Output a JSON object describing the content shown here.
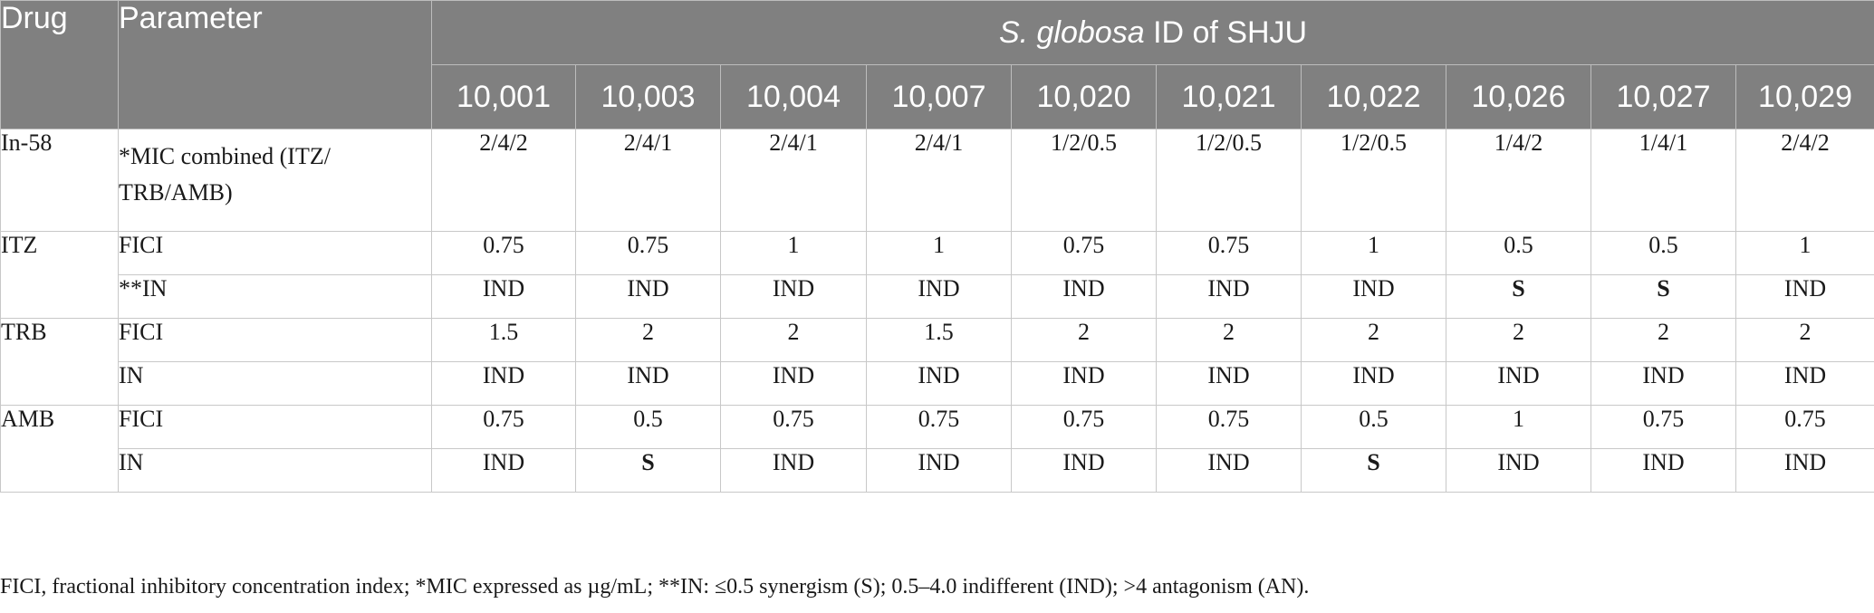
{
  "table": {
    "header": {
      "drug": "Drug",
      "parameter": "Parameter",
      "group_italic": "S. globosa",
      "group_rest": " ID of SHJU",
      "isolates": [
        "10,001",
        "10,003",
        "10,004",
        "10,007",
        "10,020",
        "10,021",
        "10,022",
        "10,026",
        "10,027",
        "10,029"
      ]
    },
    "groups": [
      {
        "drug": "In-58",
        "rows": [
          {
            "parameter": "*MIC combined (ITZ/\nTRB/AMB)",
            "values": [
              "2/4/2",
              "2/4/1",
              "2/4/1",
              "2/4/1",
              "1/2/0.5",
              "1/2/0.5",
              "1/2/0.5",
              "1/4/2",
              "1/4/1",
              "2/4/2"
            ]
          }
        ]
      },
      {
        "drug": "ITZ",
        "rows": [
          {
            "parameter": "FICI",
            "values": [
              "0.75",
              "0.75",
              "1",
              "1",
              "0.75",
              "0.75",
              "1",
              "0.5",
              "0.5",
              "1"
            ]
          },
          {
            "parameter": "**IN",
            "values": [
              "IND",
              "IND",
              "IND",
              "IND",
              "IND",
              "IND",
              "IND",
              "S",
              "S",
              "IND"
            ]
          }
        ]
      },
      {
        "drug": "TRB",
        "rows": [
          {
            "parameter": "FICI",
            "values": [
              "1.5",
              "2",
              "2",
              "1.5",
              "2",
              "2",
              "2",
              "2",
              "2",
              "2"
            ]
          },
          {
            "parameter": "IN",
            "values": [
              "IND",
              "IND",
              "IND",
              "IND",
              "IND",
              "IND",
              "IND",
              "IND",
              "IND",
              "IND"
            ]
          }
        ]
      },
      {
        "drug": "AMB",
        "rows": [
          {
            "parameter": "FICI",
            "values": [
              "0.75",
              "0.5",
              "0.75",
              "0.75",
              "0.75",
              "0.75",
              "0.5",
              "1",
              "0.75",
              "0.75"
            ]
          },
          {
            "parameter": "IN",
            "values": [
              "IND",
              "S",
              "IND",
              "IND",
              "IND",
              "IND",
              "S",
              "IND",
              "IND",
              "IND"
            ]
          }
        ]
      }
    ]
  },
  "footnote": "FICI, fractional inhibitory concentration index; *MIC expressed as µg/mL; **IN: ≤0.5 synergism (S); 0.5–4.0 indifferent (IND); >4 antagonism (AN).",
  "colors": {
    "header_bg": "#808080",
    "header_text": "#ffffff",
    "grid": "#c8c8c8"
  }
}
